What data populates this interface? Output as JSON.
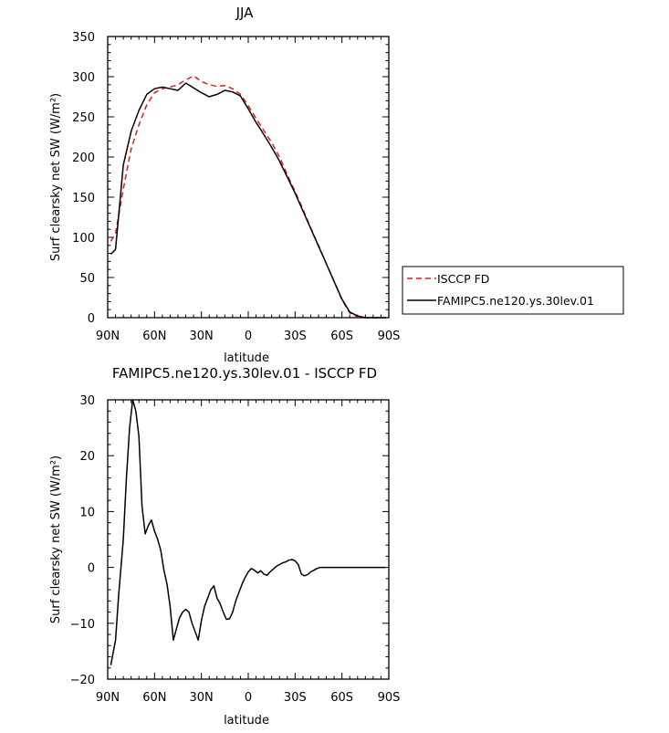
{
  "chart_data": [
    {
      "type": "line",
      "title": "JJA",
      "xlabel": "latitude",
      "ylabel": "Surf clearsky net SW (W/m²)",
      "ylim": [
        0,
        350
      ],
      "yticks": [
        "0",
        "50",
        "100",
        "150",
        "200",
        "250",
        "300",
        "350"
      ],
      "xticks": [
        "90N",
        "60N",
        "30N",
        "0",
        "30S",
        "60S",
        "90S"
      ],
      "legend_position": "right",
      "series": [
        {
          "name": "ISCCP FD",
          "color": "#e31a1c",
          "dash": true,
          "x": [
            -88,
            -85,
            -80,
            -75,
            -70,
            -65,
            -60,
            -55,
            -50,
            -45,
            -40,
            -35,
            -30,
            -25,
            -20,
            -15,
            -10,
            -5,
            0,
            5,
            10,
            15,
            20,
            25,
            30,
            35,
            40,
            45,
            50,
            55,
            60,
            65,
            70,
            75,
            80,
            85,
            88
          ],
          "values": [
            95,
            105,
            160,
            210,
            240,
            265,
            280,
            285,
            287,
            290,
            296,
            301,
            294,
            290,
            288,
            289,
            285,
            278,
            264,
            248,
            233,
            218,
            200,
            178,
            157,
            135,
            112,
            90,
            67,
            45,
            22,
            6,
            1,
            0,
            0,
            0,
            0
          ]
        },
        {
          "name": "FAMIPC5.ne120.ys.30lev.01",
          "color": "#000000",
          "dash": false,
          "x": [
            -88,
            -85,
            -80,
            -75,
            -70,
            -65,
            -60,
            -55,
            -50,
            -45,
            -40,
            -35,
            -30,
            -25,
            -20,
            -15,
            -10,
            -5,
            0,
            5,
            10,
            15,
            20,
            25,
            30,
            35,
            40,
            45,
            50,
            55,
            60,
            65,
            70,
            75,
            80,
            85,
            88
          ],
          "values": [
            79,
            85,
            190,
            232,
            258,
            278,
            285,
            287,
            285,
            283,
            292,
            286,
            280,
            275,
            278,
            283,
            281,
            276,
            260,
            243,
            228,
            212,
            195,
            175,
            155,
            133,
            111,
            89,
            67,
            45,
            23,
            7,
            2,
            0,
            0,
            0,
            0
          ]
        }
      ]
    },
    {
      "type": "line",
      "title": "FAMIPC5.ne120.ys.30lev.01 - ISCCP FD",
      "xlabel": "latitude",
      "ylabel": "Surf clearsky net SW (W/m²)",
      "ylim": [
        -20,
        30
      ],
      "yticks": [
        "−20",
        "−10",
        "0",
        "10",
        "20",
        "30"
      ],
      "xticks": [
        "90N",
        "60N",
        "30N",
        "0",
        "30S",
        "60S",
        "90S"
      ],
      "series": [
        {
          "color": "#000000",
          "x": [
            -88,
            -85,
            -83,
            -80,
            -78,
            -76,
            -74,
            -72,
            -70,
            -68,
            -66,
            -64,
            -62,
            -60,
            -58,
            -56,
            -54,
            -52,
            -50,
            -48,
            -46,
            -44,
            -42,
            -40,
            -38,
            -36,
            -34,
            -32,
            -30,
            -28,
            -26,
            -24,
            -22,
            -20,
            -18,
            -16,
            -14,
            -12,
            -10,
            -8,
            -6,
            -4,
            -2,
            0,
            2,
            4,
            6,
            8,
            10,
            12,
            14,
            16,
            18,
            20,
            22,
            24,
            26,
            28,
            30,
            32,
            34,
            36,
            38,
            40,
            42,
            44,
            46,
            48,
            50,
            52,
            54,
            56,
            58,
            60,
            62,
            64,
            66,
            68,
            70,
            72,
            74,
            76,
            78,
            80,
            82,
            84,
            86,
            88
          ],
          "values": [
            -17.5,
            -13,
            -5,
            5,
            16,
            25,
            30,
            28,
            23.5,
            11,
            6,
            7.5,
            8.5,
            6.5,
            5,
            3,
            -0.5,
            -3,
            -7,
            -13,
            -11,
            -9,
            -8,
            -7.5,
            -8,
            -10,
            -11.5,
            -13,
            -9.5,
            -7,
            -5.5,
            -4,
            -3.3,
            -5.5,
            -6.5,
            -8,
            -9.3,
            -9.2,
            -8,
            -6,
            -4.5,
            -3,
            -1.8,
            -0.8,
            -0.2,
            -0.5,
            -1,
            -0.6,
            -1.2,
            -1.4,
            -0.8,
            -0.3,
            0.2,
            0.5,
            0.8,
            1,
            1.3,
            1.4,
            1.2,
            0.5,
            -1.2,
            -1.5,
            -1.3,
            -0.8,
            -0.5,
            -0.2,
            0,
            0,
            0,
            0,
            0,
            0,
            0,
            0,
            0,
            0,
            0,
            0,
            0,
            0,
            0,
            0,
            0,
            0,
            0,
            0,
            0,
            0
          ]
        }
      ]
    }
  ]
}
